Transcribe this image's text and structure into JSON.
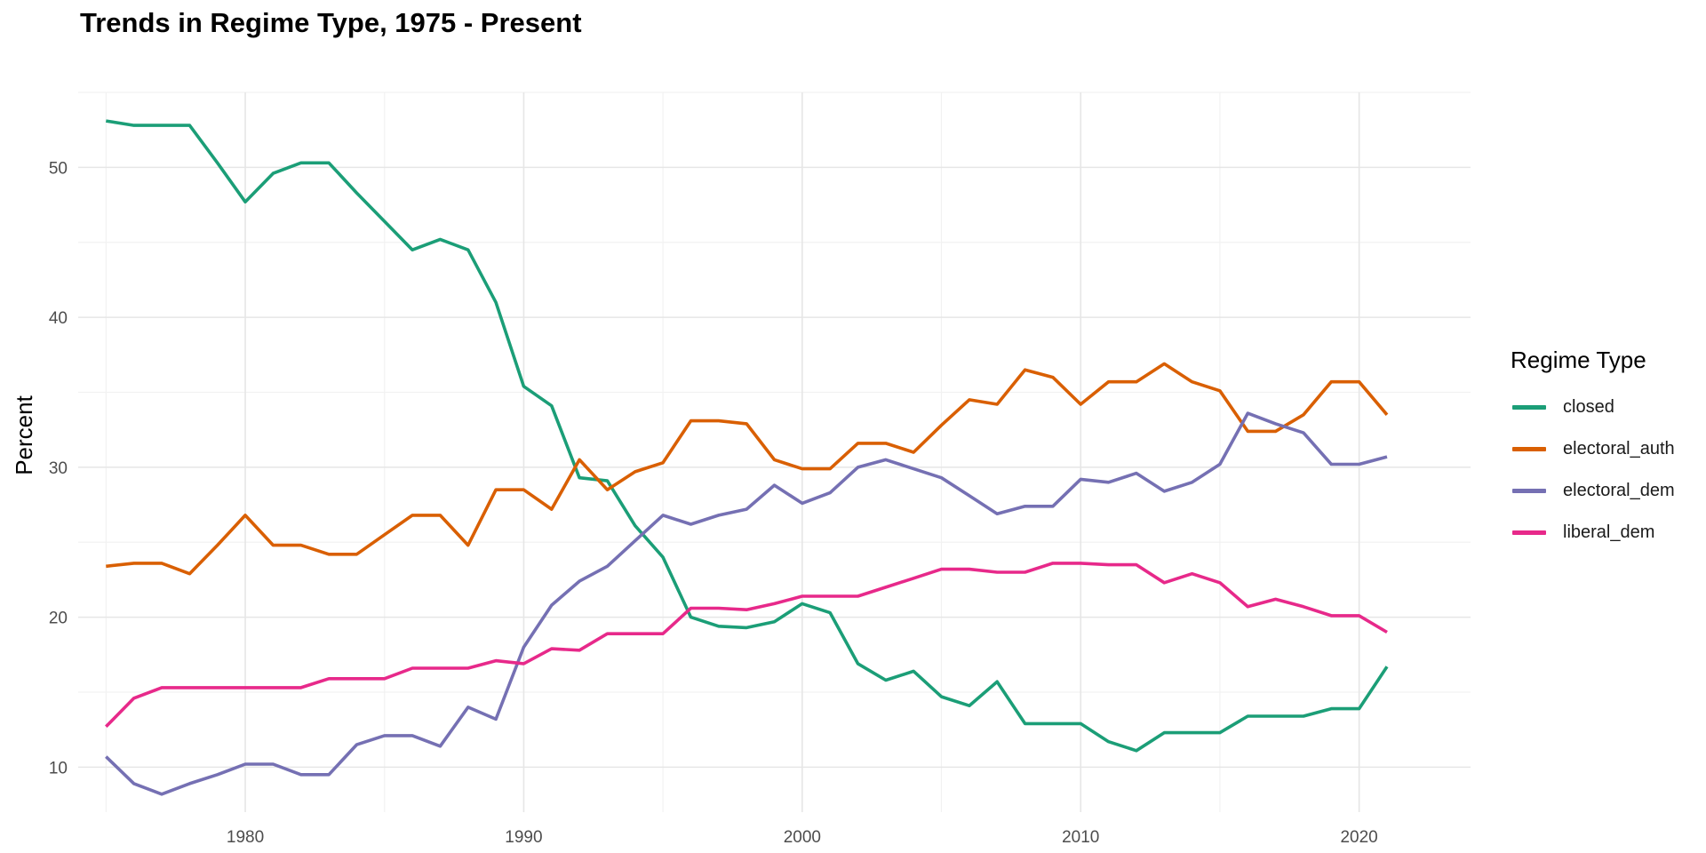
{
  "chart_data": {
    "type": "line",
    "title": "Trends in Regime Type, 1975 - Present",
    "xlabel": "",
    "ylabel": "Percent",
    "xlim": [
      1974,
      2024
    ],
    "ylim": [
      7,
      55
    ],
    "x_ticks": [
      1980,
      1990,
      2000,
      2010,
      2020
    ],
    "y_ticks": [
      10,
      20,
      30,
      40,
      50
    ],
    "grid": true,
    "legend": {
      "title": "Regime Type",
      "placement": "right"
    },
    "x": [
      1975,
      1976,
      1977,
      1978,
      1979,
      1980,
      1981,
      1982,
      1983,
      1984,
      1985,
      1986,
      1987,
      1988,
      1989,
      1990,
      1991,
      1992,
      1993,
      1994,
      1995,
      1996,
      1997,
      1998,
      1999,
      2000,
      2001,
      2002,
      2003,
      2004,
      2005,
      2006,
      2007,
      2008,
      2009,
      2010,
      2011,
      2012,
      2013,
      2014,
      2015,
      2016,
      2017,
      2018,
      2019,
      2020,
      2021
    ],
    "series": [
      {
        "name": "closed",
        "color": "#1b9e77",
        "values": [
          53.1,
          52.8,
          52.8,
          52.8,
          50.3,
          47.7,
          49.6,
          50.3,
          50.3,
          48.3,
          46.4,
          44.5,
          45.2,
          44.5,
          41.0,
          35.4,
          34.1,
          29.3,
          29.1,
          26.1,
          24.0,
          20.0,
          19.4,
          19.3,
          19.7,
          20.9,
          20.3,
          16.9,
          15.8,
          16.4,
          14.7,
          14.1,
          15.7,
          12.9,
          12.9,
          12.9,
          11.7,
          11.1,
          12.3,
          12.3,
          12.3,
          13.4,
          13.4,
          13.4,
          13.9,
          13.9,
          16.7
        ]
      },
      {
        "name": "electoral_auth",
        "color": "#d95f02",
        "values": [
          23.4,
          23.6,
          23.6,
          22.9,
          24.8,
          26.8,
          24.8,
          24.8,
          24.2,
          24.2,
          25.5,
          26.8,
          26.8,
          24.8,
          28.5,
          28.5,
          27.2,
          30.5,
          28.5,
          29.7,
          30.3,
          33.1,
          33.1,
          32.9,
          30.5,
          29.9,
          29.9,
          31.6,
          31.6,
          31.0,
          32.8,
          34.5,
          34.2,
          36.5,
          36.0,
          34.2,
          35.7,
          35.7,
          36.9,
          35.7,
          35.1,
          32.4,
          32.4,
          33.5,
          35.7,
          35.7,
          33.5
        ]
      },
      {
        "name": "electoral_dem",
        "color": "#7570b3",
        "values": [
          10.7,
          8.9,
          8.2,
          8.9,
          9.5,
          10.2,
          10.2,
          9.5,
          9.5,
          11.5,
          12.1,
          12.1,
          11.4,
          14.0,
          13.2,
          18.0,
          20.8,
          22.4,
          23.4,
          25.1,
          26.8,
          26.2,
          26.8,
          27.2,
          28.8,
          27.6,
          28.3,
          30.0,
          30.5,
          29.9,
          29.3,
          28.1,
          26.9,
          27.4,
          27.4,
          29.2,
          29.0,
          29.6,
          28.4,
          29.0,
          30.2,
          33.6,
          32.9,
          32.3,
          30.2,
          30.2,
          30.7
        ]
      },
      {
        "name": "liberal_dem",
        "color": "#e7298a",
        "values": [
          12.7,
          14.6,
          15.3,
          15.3,
          15.3,
          15.3,
          15.3,
          15.3,
          15.9,
          15.9,
          15.9,
          16.6,
          16.6,
          16.6,
          17.1,
          16.9,
          17.9,
          17.8,
          18.9,
          18.9,
          18.9,
          20.6,
          20.6,
          20.5,
          20.9,
          21.4,
          21.4,
          21.4,
          22.0,
          22.6,
          23.2,
          23.2,
          23.0,
          23.0,
          23.6,
          23.6,
          23.5,
          23.5,
          22.3,
          22.9,
          22.3,
          20.7,
          21.2,
          20.7,
          20.1,
          20.1,
          19.0
        ]
      }
    ]
  }
}
